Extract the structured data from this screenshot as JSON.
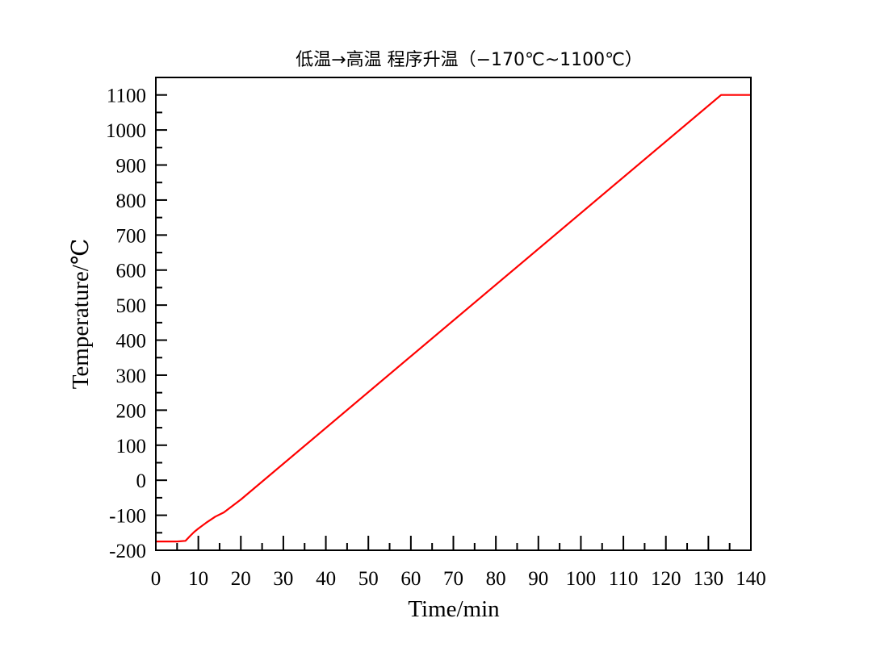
{
  "chart_data": {
    "type": "line",
    "title": "低温→高温 程序升温（−170℃~1100℃）",
    "xlabel": "Time/min",
    "ylabel": "Temperature/℃",
    "xlim": [
      0,
      140
    ],
    "ylim": [
      -200,
      1150
    ],
    "x_ticks": [
      "0",
      "10",
      "20",
      "30",
      "40",
      "50",
      "60",
      "70",
      "80",
      "90",
      "100",
      "110",
      "120",
      "130",
      "140"
    ],
    "y_ticks": [
      "-200",
      "-100",
      "0",
      "100",
      "200",
      "300",
      "400",
      "500",
      "600",
      "700",
      "800",
      "900",
      "1000",
      "1100"
    ],
    "grid": false,
    "series": [
      {
        "color": "#ff0000",
        "x": [
          0,
          5,
          7,
          8,
          9,
          10,
          12,
          14,
          16,
          20,
          133,
          140
        ],
        "y": [
          -175,
          -175,
          -173,
          -160,
          -148,
          -138,
          -120,
          -104,
          -92,
          -55,
          1100,
          1100
        ]
      }
    ]
  }
}
